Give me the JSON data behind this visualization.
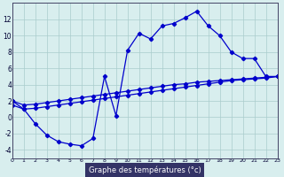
{
  "hours_main": [
    0,
    1,
    2,
    3,
    4,
    5,
    6,
    7,
    8,
    9,
    10,
    11,
    12,
    13,
    14,
    15,
    16,
    17,
    18,
    19,
    20,
    21,
    22,
    23
  ],
  "temps_main": [
    2.0,
    1.0,
    -0.8,
    -2.2,
    -3.0,
    -3.3,
    -3.5,
    -2.6,
    5.0,
    0.2,
    8.2,
    10.3,
    9.6,
    11.2,
    11.5,
    12.2,
    13.0,
    11.2,
    10.0,
    8.0,
    7.2,
    7.2,
    5.0,
    5.0
  ],
  "hours_band1": [
    0,
    1,
    2,
    3,
    4,
    5,
    6,
    7,
    8,
    9,
    10,
    11,
    12,
    13,
    14,
    15,
    16,
    17,
    18,
    19,
    20,
    21,
    22,
    23
  ],
  "temps_band1": [
    2.0,
    1.5,
    1.6,
    1.8,
    2.0,
    2.2,
    2.4,
    2.6,
    2.8,
    3.0,
    3.2,
    3.4,
    3.6,
    3.8,
    4.0,
    4.1,
    4.3,
    4.4,
    4.5,
    4.6,
    4.7,
    4.8,
    4.9,
    5.0
  ],
  "hours_band2": [
    0,
    1,
    2,
    3,
    4,
    5,
    6,
    7,
    8,
    9,
    10,
    11,
    12,
    13,
    14,
    15,
    16,
    17,
    18,
    19,
    20,
    21,
    22,
    23
  ],
  "temps_band2": [
    1.5,
    1.0,
    1.1,
    1.3,
    1.5,
    1.7,
    1.9,
    2.1,
    2.3,
    2.5,
    2.7,
    2.9,
    3.1,
    3.3,
    3.5,
    3.7,
    3.9,
    4.1,
    4.3,
    4.5,
    4.6,
    4.7,
    4.8,
    5.0
  ],
  "xlabel": "Graphe des températures (°c)",
  "yticks": [
    -4,
    -2,
    0,
    2,
    4,
    6,
    8,
    10,
    12
  ],
  "xticks": [
    0,
    1,
    2,
    3,
    4,
    5,
    6,
    7,
    8,
    9,
    10,
    11,
    12,
    13,
    14,
    15,
    16,
    17,
    18,
    19,
    20,
    21,
    22,
    23
  ],
  "ylim": [
    -5.0,
    14.0
  ],
  "xlim": [
    0,
    23
  ],
  "line_color": "#0000cc",
  "bg_color": "#d8eeee",
  "grid_color": "#aacccc",
  "axis_color": "#444466",
  "xlabel_bg": "#333366",
  "xlabel_fg": "#ffffff"
}
